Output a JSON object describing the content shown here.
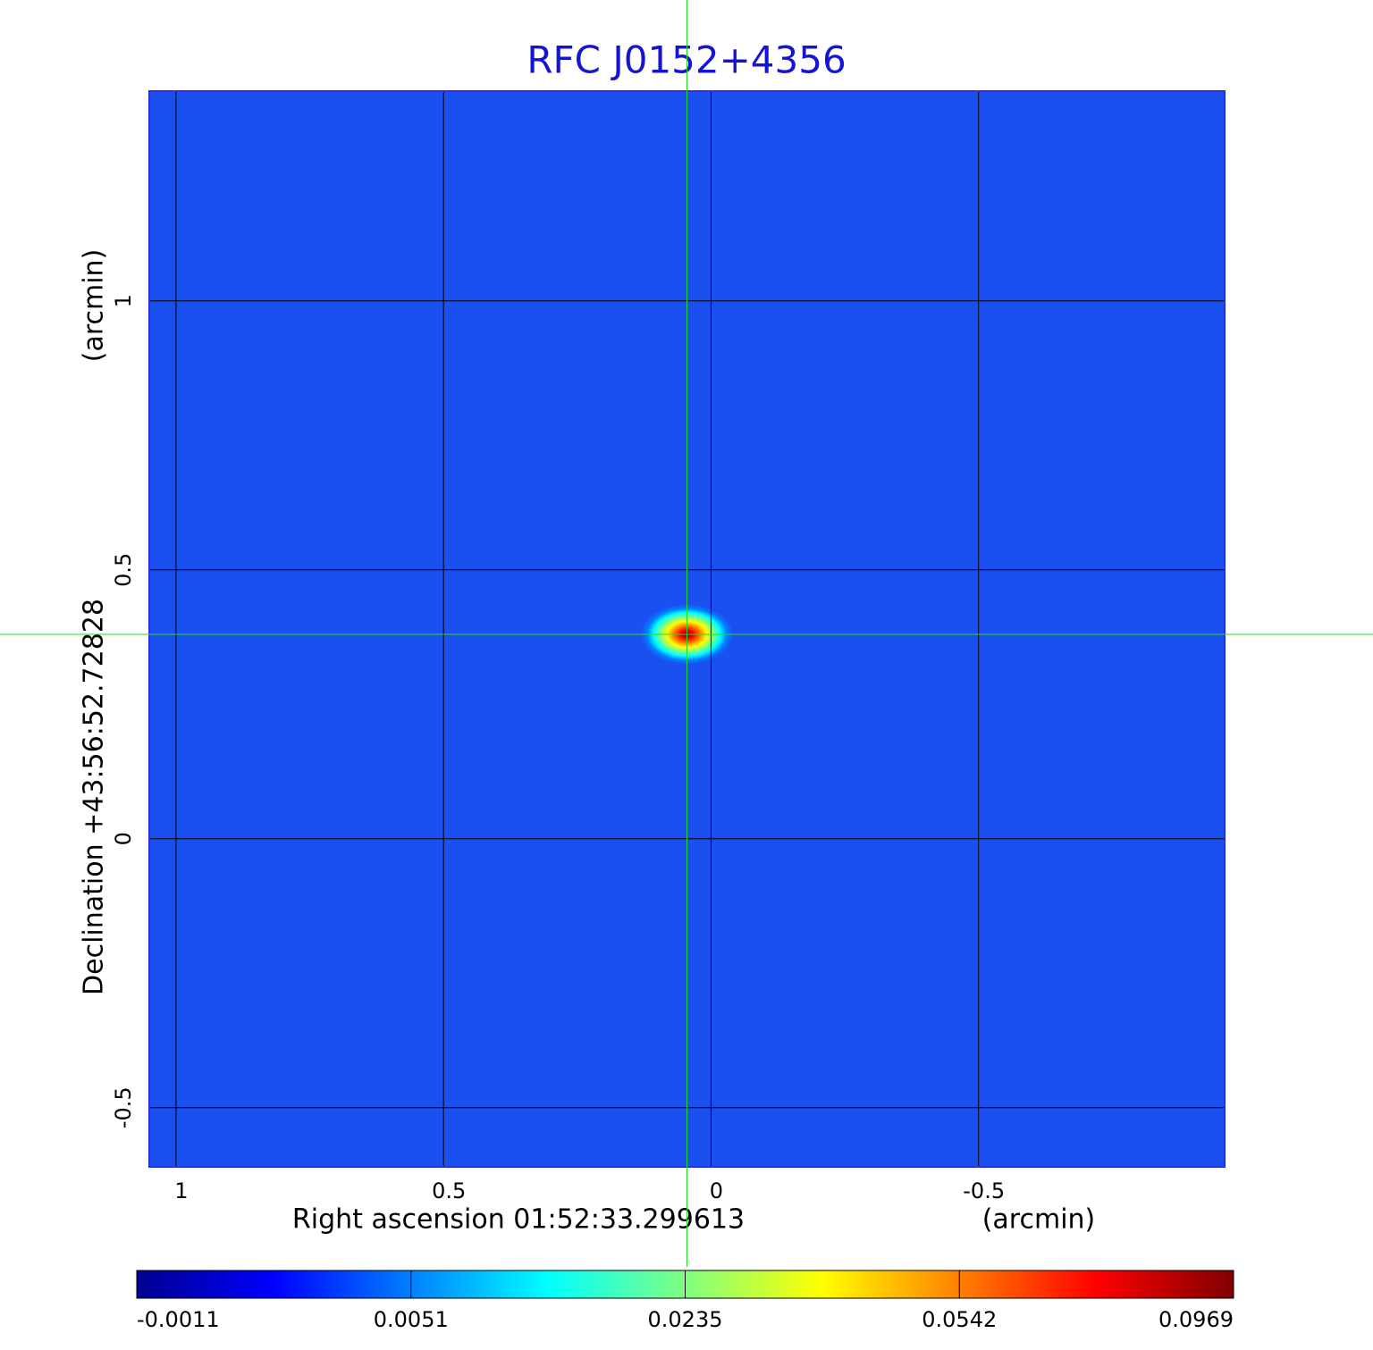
{
  "chart_data": {
    "type": "image",
    "title": "RFC J0152+4356",
    "x_label": "Right ascension  01:52:33.299613",
    "x_unit": "(arcmin)",
    "y_label": "Declination  +43:56:52.72828",
    "y_unit": "(arcmin)",
    "xlim": [
      1.05,
      -0.96
    ],
    "ylim": [
      -0.61,
      1.39
    ],
    "xticks": [
      1.0,
      0.5,
      0.0,
      -0.5
    ],
    "yticks": [
      -0.5,
      0.0,
      0.5,
      1.0
    ],
    "grid": true,
    "background_color": "#1a4ff0",
    "source": {
      "x": 0.045,
      "y": 0.38
    },
    "crosshair_color": "#22dd22",
    "colormap": [
      "#00008f",
      "#0000ff",
      "#0080ff",
      "#00ffff",
      "#80ff80",
      "#ffff00",
      "#ff8000",
      "#ff0000",
      "#800000"
    ],
    "colorbar_ticks": [
      -0.0011,
      0.0051,
      0.0235,
      0.0542,
      0.0969
    ]
  }
}
